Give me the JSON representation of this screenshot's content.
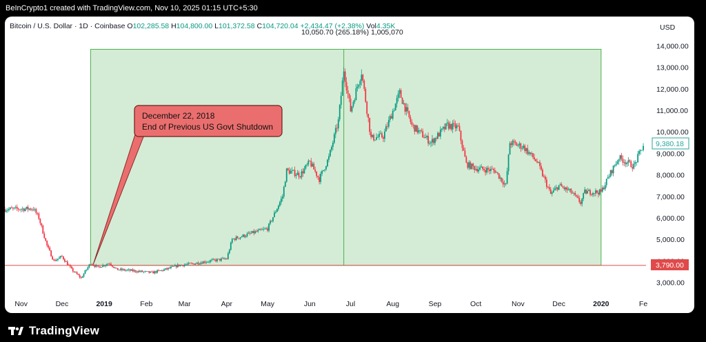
{
  "header": {
    "attribution": "BeInCrypto1 created with TradingView.com, Nov 10, 2025 01:15 UTC+5:30"
  },
  "legend": {
    "symbol": "Bitcoin / U.S. Dollar · 1D · Coinbase",
    "o_label": "O",
    "o_value": "102,285.58",
    "h_label": "H",
    "h_value": "104,800.00",
    "l_label": "L",
    "l_value": "101,372.58",
    "c_label": "C",
    "c_value": "104,720.04",
    "change": "+2,434.47 (+2.38%)",
    "vol_label": "Vol",
    "vol_value": "4.35K"
  },
  "range_info": "10,050.70 (265.18%) 1,005,070",
  "currency": "USD",
  "annotation": {
    "line1": "December 22, 2018",
    "line2": "End of Previous US Govt Shutdown"
  },
  "price_tags": {
    "current": "9,380.18",
    "baseline": "3,790.00"
  },
  "footer": {
    "brand": "TradingView"
  },
  "colors": {
    "up": "#089981",
    "down": "#f23645",
    "range_fill": "#d4ecd5",
    "range_border": "#4caf50",
    "annotation_fill": "#eb6e6e",
    "baseline_line": "#e04a4a",
    "current_tag_border": "#26a69a"
  },
  "chart_data": {
    "type": "candlestick",
    "symbol": "Bitcoin / U.S. Dollar",
    "interval": "1D",
    "ylim": [
      2600,
      14400
    ],
    "yticks": [
      {
        "value": 3000,
        "label": "3,000.00"
      },
      {
        "value": 4000,
        "label": "4,000.00"
      },
      {
        "value": 5000,
        "label": "5,000.00"
      },
      {
        "value": 6000,
        "label": "6,000.00"
      },
      {
        "value": 7000,
        "label": "7,000.00"
      },
      {
        "value": 8000,
        "label": "8,000.00"
      },
      {
        "value": 9000,
        "label": "9,000.00"
      },
      {
        "value": 10000,
        "label": "10,000.00"
      },
      {
        "value": 11000,
        "label": "11,000.00"
      },
      {
        "value": 12000,
        "label": "12,000.00"
      },
      {
        "value": 13000,
        "label": "13,000.00"
      },
      {
        "value": 14000,
        "label": "14,000.00"
      }
    ],
    "xticks": [
      {
        "date": "2018-11-01",
        "label": "Nov"
      },
      {
        "date": "2018-12-01",
        "label": "Dec"
      },
      {
        "date": "2019-01-01",
        "label": "2019"
      },
      {
        "date": "2019-02-01",
        "label": "Feb"
      },
      {
        "date": "2019-03-01",
        "label": "Mar"
      },
      {
        "date": "2019-04-01",
        "label": "Apr"
      },
      {
        "date": "2019-05-01",
        "label": "May"
      },
      {
        "date": "2019-06-01",
        "label": "Jun"
      },
      {
        "date": "2019-07-01",
        "label": "Jul"
      },
      {
        "date": "2019-08-01",
        "label": "Aug"
      },
      {
        "date": "2019-09-01",
        "label": "Sep"
      },
      {
        "date": "2019-10-01",
        "label": "Oct"
      },
      {
        "date": "2019-11-01",
        "label": "Nov"
      },
      {
        "date": "2019-12-01",
        "label": "Dec"
      },
      {
        "date": "2020-01-01",
        "label": "2020"
      },
      {
        "date": "2020-02-01",
        "label": "Fe"
      }
    ],
    "series": [
      {
        "date": "2018-10-20",
        "close": 6400
      },
      {
        "date": "2018-11-10",
        "close": 6430
      },
      {
        "date": "2018-11-14",
        "close": 6000
      },
      {
        "date": "2018-11-20",
        "close": 4700
      },
      {
        "date": "2018-11-25",
        "close": 4000
      },
      {
        "date": "2018-12-01",
        "close": 4200
      },
      {
        "date": "2018-12-08",
        "close": 3600
      },
      {
        "date": "2018-12-15",
        "close": 3200
      },
      {
        "date": "2018-12-22",
        "close": 3900
      },
      {
        "date": "2018-12-27",
        "close": 3700
      },
      {
        "date": "2019-01-05",
        "close": 3900
      },
      {
        "date": "2019-01-10",
        "close": 3600
      },
      {
        "date": "2019-01-20",
        "close": 3550
      },
      {
        "date": "2019-02-05",
        "close": 3450
      },
      {
        "date": "2019-02-15",
        "close": 3600
      },
      {
        "date": "2019-02-25",
        "close": 3800
      },
      {
        "date": "2019-03-05",
        "close": 3850
      },
      {
        "date": "2019-03-20",
        "close": 4000
      },
      {
        "date": "2019-04-01",
        "close": 4100
      },
      {
        "date": "2019-04-05",
        "close": 5000
      },
      {
        "date": "2019-04-20",
        "close": 5300
      },
      {
        "date": "2019-05-01",
        "close": 5500
      },
      {
        "date": "2019-05-12",
        "close": 7000
      },
      {
        "date": "2019-05-15",
        "close": 8200
      },
      {
        "date": "2019-05-25",
        "close": 8000
      },
      {
        "date": "2019-06-01",
        "close": 8600
      },
      {
        "date": "2019-06-08",
        "close": 7800
      },
      {
        "date": "2019-06-15",
        "close": 8800
      },
      {
        "date": "2019-06-22",
        "close": 10500
      },
      {
        "date": "2019-06-26",
        "close": 12900
      },
      {
        "date": "2019-07-01",
        "close": 11000
      },
      {
        "date": "2019-07-09",
        "close": 12800
      },
      {
        "date": "2019-07-16",
        "close": 9700
      },
      {
        "date": "2019-07-25",
        "close": 9800
      },
      {
        "date": "2019-08-06",
        "close": 11800
      },
      {
        "date": "2019-08-15",
        "close": 10300
      },
      {
        "date": "2019-08-29",
        "close": 9500
      },
      {
        "date": "2019-09-10",
        "close": 10300
      },
      {
        "date": "2019-09-18",
        "close": 10200
      },
      {
        "date": "2019-09-24",
        "close": 8500
      },
      {
        "date": "2019-10-01",
        "close": 8300
      },
      {
        "date": "2019-10-15",
        "close": 8200
      },
      {
        "date": "2019-10-23",
        "close": 7500
      },
      {
        "date": "2019-10-26",
        "close": 9500
      },
      {
        "date": "2019-11-05",
        "close": 9300
      },
      {
        "date": "2019-11-15",
        "close": 8600
      },
      {
        "date": "2019-11-25",
        "close": 7100
      },
      {
        "date": "2019-12-01",
        "close": 7500
      },
      {
        "date": "2019-12-10",
        "close": 7200
      },
      {
        "date": "2019-12-17",
        "close": 6700
      },
      {
        "date": "2019-12-20",
        "close": 7200
      },
      {
        "date": "2020-01-01",
        "close": 7200
      },
      {
        "date": "2020-01-08",
        "close": 8100
      },
      {
        "date": "2020-01-14",
        "close": 8800
      },
      {
        "date": "2020-01-25",
        "close": 8400
      },
      {
        "date": "2020-02-01",
        "close": 9380
      }
    ],
    "range": {
      "start": "2018-12-22",
      "end": "2020-01-01",
      "low": 3790,
      "high": 13840,
      "peak_date": "2019-06-26"
    },
    "grid": false
  }
}
